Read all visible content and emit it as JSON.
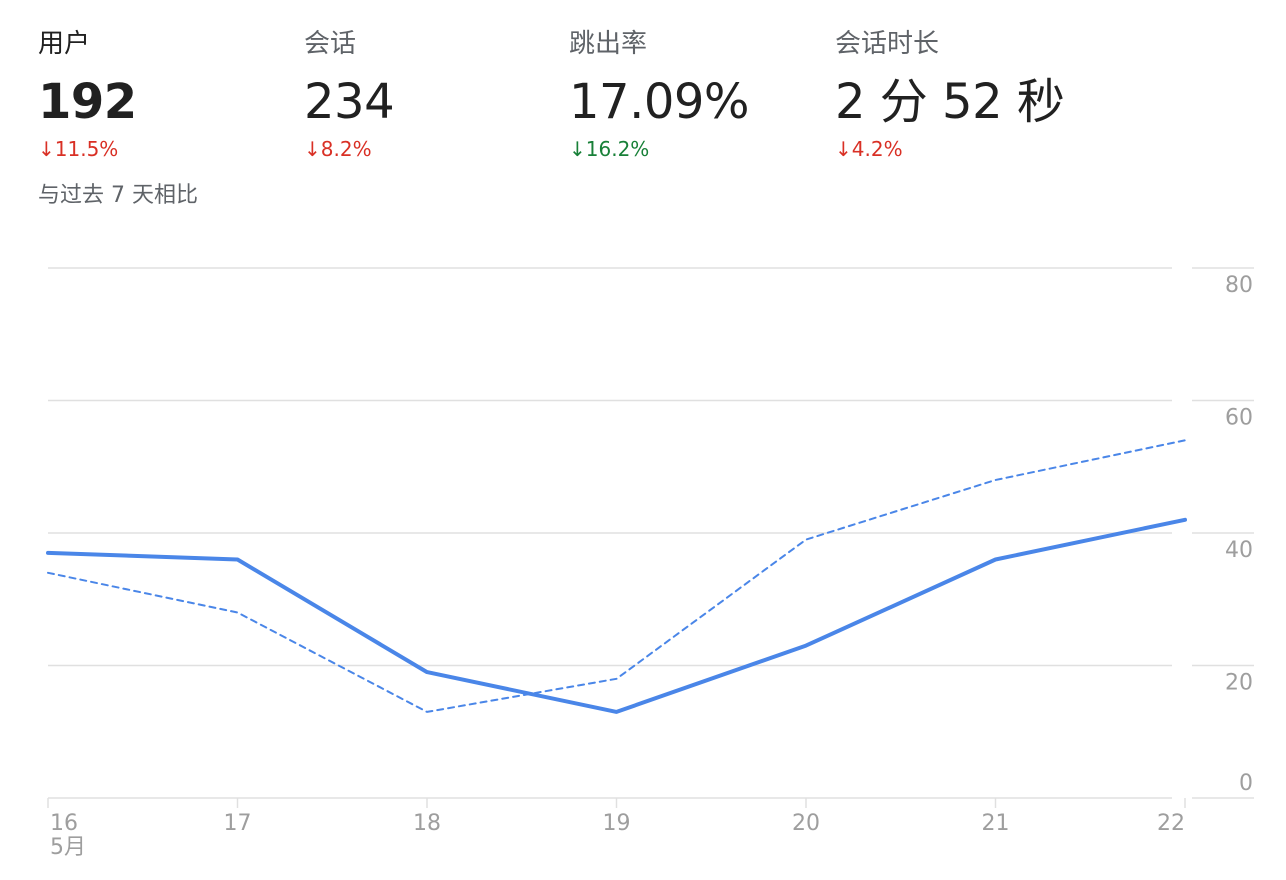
{
  "metrics": [
    {
      "label": "用户",
      "value": "192",
      "change": "11.5%",
      "arrow": "↓",
      "change_color": "#d93025"
    },
    {
      "label": "会话",
      "value": "234",
      "change": "8.2%",
      "arrow": "↓",
      "change_color": "#d93025"
    },
    {
      "label": "跳出率",
      "value": "17.09%",
      "change": "16.2%",
      "arrow": "↓",
      "change_color": "#188038"
    },
    {
      "label": "会话时长",
      "value": "2 分 52 秒",
      "change": "4.2%",
      "arrow": "↓",
      "change_color": "#d93025"
    }
  ],
  "compare_note": "与过去 7 天相比",
  "colors": {
    "line": "#4a86e8",
    "grid": "#e0e0e0",
    "tick_text": "#9e9e9e"
  },
  "chart_data": {
    "type": "line",
    "x": [
      "16",
      "17",
      "18",
      "19",
      "20",
      "21",
      "22"
    ],
    "x_sublabel": "5月",
    "ylim": [
      0,
      80
    ],
    "yticks": [
      0,
      20,
      40,
      60,
      80
    ],
    "y_axis_side": "right",
    "grid": true,
    "series": [
      {
        "values": [
          37,
          36,
          19,
          13,
          23,
          36,
          42
        ],
        "style": "solid"
      },
      {
        "values": [
          34,
          28,
          13,
          18,
          39,
          48,
          54
        ],
        "style": "dashed"
      }
    ]
  }
}
